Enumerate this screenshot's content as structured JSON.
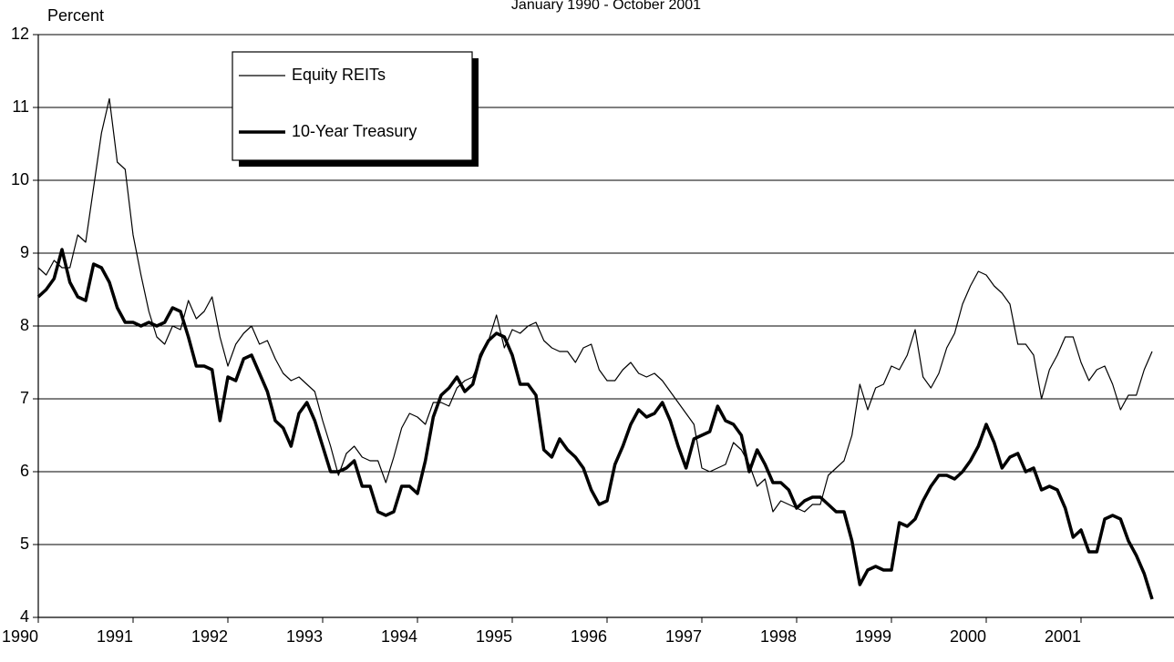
{
  "chart_data": {
    "type": "line",
    "subtitle": "January 1990 - October 2001",
    "y_label": "Percent",
    "categories": [
      "1990",
      null,
      null,
      null,
      null,
      null,
      null,
      null,
      null,
      null,
      null,
      null,
      "1991",
      null,
      null,
      null,
      null,
      null,
      null,
      null,
      null,
      null,
      null,
      null,
      "1992",
      null,
      null,
      null,
      null,
      null,
      null,
      null,
      null,
      null,
      null,
      null,
      "1993",
      null,
      null,
      null,
      null,
      null,
      null,
      null,
      null,
      null,
      null,
      null,
      "1994",
      null,
      null,
      null,
      null,
      null,
      null,
      null,
      null,
      null,
      null,
      null,
      "1995",
      null,
      null,
      null,
      null,
      null,
      null,
      null,
      null,
      null,
      null,
      null,
      "1996",
      null,
      null,
      null,
      null,
      null,
      null,
      null,
      null,
      null,
      null,
      null,
      "1997",
      null,
      null,
      null,
      null,
      null,
      null,
      null,
      null,
      null,
      null,
      null,
      "1998",
      null,
      null,
      null,
      null,
      null,
      null,
      null,
      null,
      null,
      null,
      null,
      "1999",
      null,
      null,
      null,
      null,
      null,
      null,
      null,
      null,
      null,
      null,
      null,
      "2000",
      null,
      null,
      null,
      null,
      null,
      null,
      null,
      null,
      null,
      null,
      null,
      "2001",
      null,
      null,
      null,
      null,
      null,
      null,
      null,
      null,
      null
    ],
    "series": [
      {
        "name": "Equity REITs",
        "color": "#000000",
        "line_width": 1.2,
        "values": [
          8.8,
          8.7,
          8.9,
          8.8,
          8.8,
          9.25,
          9.15,
          9.9,
          10.65,
          11.12,
          10.25,
          10.15,
          9.25,
          8.7,
          8.2,
          7.85,
          7.75,
          8.0,
          7.95,
          8.35,
          8.1,
          8.2,
          8.4,
          7.85,
          7.45,
          7.75,
          7.9,
          8.0,
          7.75,
          7.8,
          7.55,
          7.35,
          7.25,
          7.3,
          7.2,
          7.1,
          6.7,
          6.35,
          5.95,
          6.25,
          6.35,
          6.2,
          6.15,
          6.15,
          5.85,
          6.2,
          6.6,
          6.8,
          6.75,
          6.65,
          6.95,
          6.95,
          6.9,
          7.15,
          7.25,
          7.3,
          7.55,
          7.8,
          8.15,
          7.7,
          7.95,
          7.9,
          8.0,
          8.05,
          7.8,
          7.7,
          7.65,
          7.65,
          7.5,
          7.7,
          7.75,
          7.4,
          7.25,
          7.25,
          7.4,
          7.5,
          7.35,
          7.3,
          7.35,
          7.25,
          7.1,
          6.95,
          6.8,
          6.65,
          6.05,
          6.0,
          6.05,
          6.1,
          6.4,
          6.3,
          6.1,
          5.8,
          5.9,
          5.45,
          5.6,
          5.55,
          5.5,
          5.45,
          5.55,
          5.55,
          5.95,
          6.05,
          6.15,
          6.5,
          7.2,
          6.85,
          7.15,
          7.2,
          7.45,
          7.4,
          7.6,
          7.95,
          7.3,
          7.15,
          7.35,
          7.7,
          7.9,
          8.3,
          8.55,
          8.75,
          8.7,
          8.55,
          8.45,
          8.3,
          7.75,
          7.75,
          7.6,
          7.0,
          7.4,
          7.6,
          7.85,
          7.85,
          7.5,
          7.25,
          7.4,
          7.45,
          7.2,
          6.85,
          7.05,
          7.05,
          7.4,
          7.65
        ]
      },
      {
        "name": "10-Year Treasury",
        "color": "#000000",
        "line_width": 3.5,
        "values": [
          8.4,
          8.5,
          8.65,
          9.05,
          8.6,
          8.4,
          8.35,
          8.85,
          8.8,
          8.6,
          8.25,
          8.05,
          8.05,
          8.0,
          8.05,
          8.0,
          8.05,
          8.25,
          8.2,
          7.85,
          7.45,
          7.45,
          7.4,
          6.7,
          7.3,
          7.25,
          7.55,
          7.6,
          7.35,
          7.1,
          6.7,
          6.6,
          6.35,
          6.8,
          6.95,
          6.7,
          6.35,
          6.0,
          6.0,
          6.05,
          6.15,
          5.8,
          5.8,
          5.45,
          5.4,
          5.45,
          5.8,
          5.8,
          5.7,
          6.15,
          6.75,
          7.05,
          7.15,
          7.3,
          7.1,
          7.2,
          7.6,
          7.8,
          7.9,
          7.85,
          7.6,
          7.2,
          7.2,
          7.05,
          6.3,
          6.2,
          6.45,
          6.3,
          6.2,
          6.05,
          5.75,
          5.55,
          5.6,
          6.1,
          6.35,
          6.65,
          6.85,
          6.75,
          6.8,
          6.95,
          6.7,
          6.35,
          6.05,
          6.45,
          6.5,
          6.55,
          6.9,
          6.7,
          6.65,
          6.5,
          6.0,
          6.3,
          6.1,
          5.85,
          5.85,
          5.75,
          5.5,
          5.6,
          5.65,
          5.65,
          5.55,
          5.45,
          5.45,
          5.05,
          4.45,
          4.65,
          4.7,
          4.65,
          4.65,
          5.3,
          5.25,
          5.35,
          5.6,
          5.8,
          5.95,
          5.95,
          5.9,
          6.0,
          6.15,
          6.35,
          6.65,
          6.4,
          6.05,
          6.2,
          6.25,
          6.0,
          6.05,
          5.75,
          5.8,
          5.75,
          5.5,
          5.1,
          5.2,
          4.9,
          4.9,
          5.35,
          5.4,
          5.35,
          5.05,
          4.85,
          4.6,
          4.25
        ]
      }
    ],
    "ylim": [
      4,
      12
    ],
    "yticks": [
      4,
      5,
      6,
      7,
      8,
      9,
      10,
      11,
      12
    ],
    "grid": true
  }
}
